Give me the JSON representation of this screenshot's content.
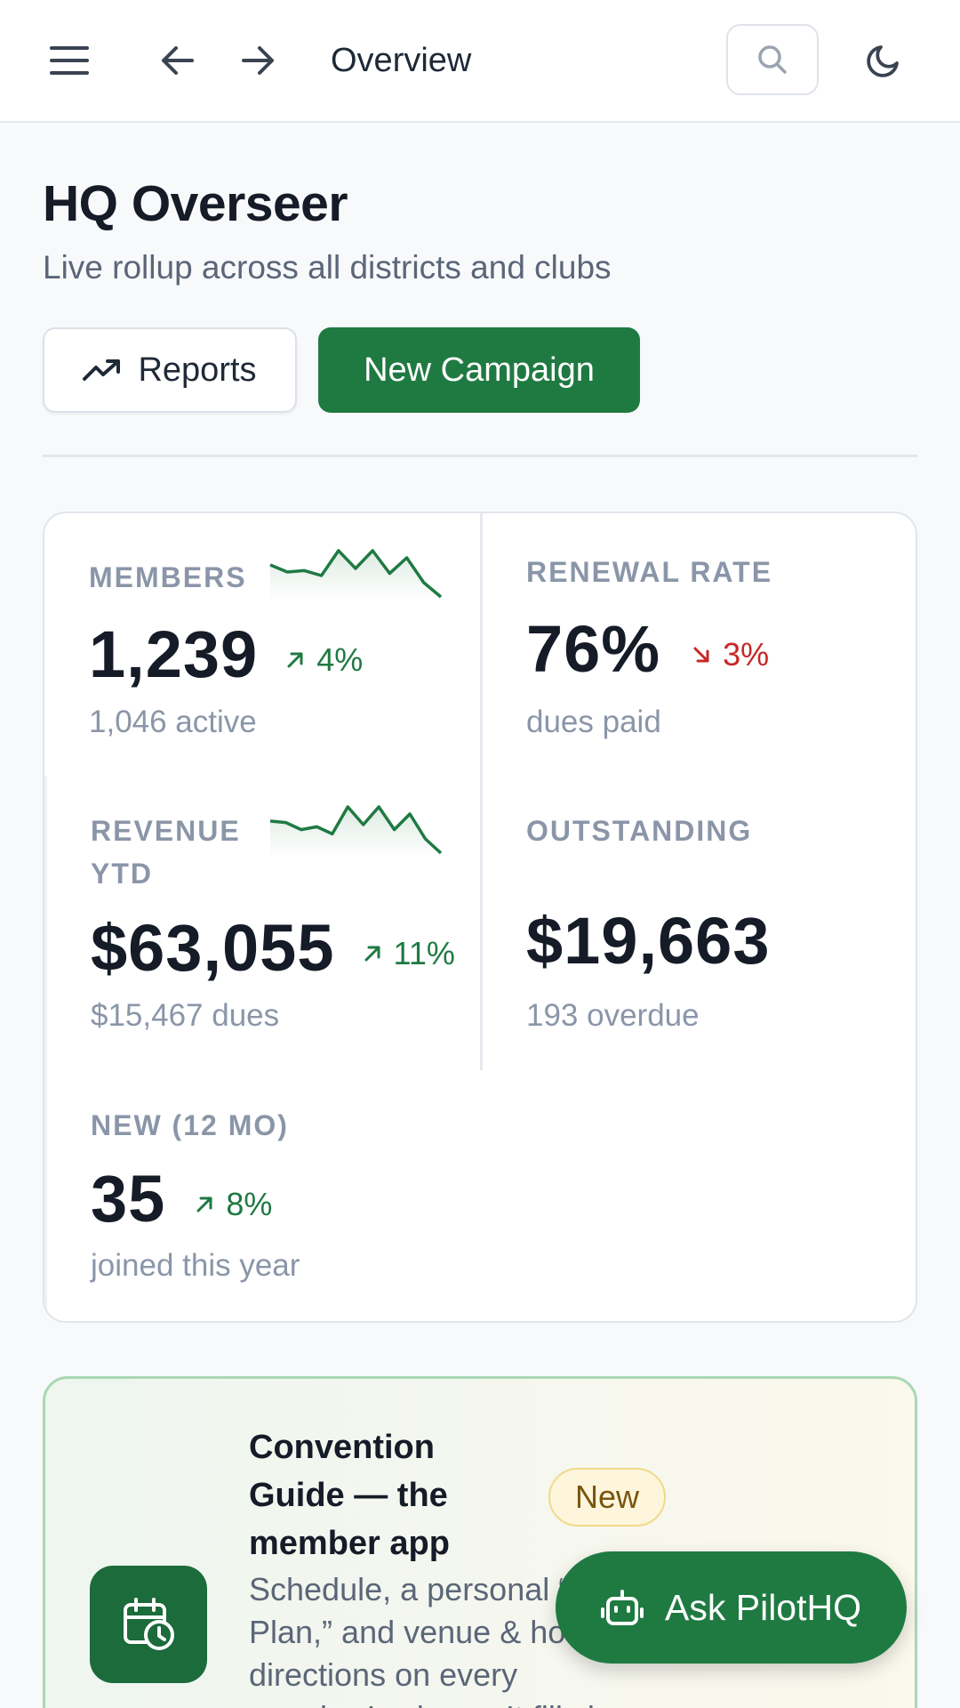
{
  "topbar": {
    "title": "Overview",
    "icons": [
      "menu-icon",
      "arrow-left-icon",
      "arrow-right-icon",
      "search-icon",
      "moon-icon"
    ]
  },
  "header": {
    "title": "HQ Overseer",
    "subtitle": "Live rollup across all districts and clubs",
    "reports_label": "Reports",
    "campaign_label": "New Campaign"
  },
  "stats": {
    "members": {
      "label": "MEMBERS",
      "value": "1,239",
      "delta": "4%",
      "delta_direction": "up",
      "sub": "1,046 active",
      "sparkline": [
        5,
        4,
        4.2,
        3.5,
        7,
        4.5,
        7,
        3.8,
        6,
        2.5,
        0.5
      ]
    },
    "renewal": {
      "label": "RENEWAL RATE",
      "value": "76%",
      "delta": "3%",
      "delta_direction": "down",
      "sub": "dues paid"
    },
    "revenue": {
      "label_line1": "REVENUE",
      "label_line2": "YTD",
      "value": "$63,055",
      "delta": "11%",
      "delta_direction": "up",
      "sub": "$15,467 dues",
      "sparkline": [
        5,
        4.8,
        3.8,
        4.2,
        3.2,
        7,
        4.5,
        7,
        3.8,
        6,
        2.5,
        0.5
      ]
    },
    "outstanding": {
      "label": "OUTSTANDING",
      "value": "$19,663",
      "sub": "193 overdue"
    },
    "new_members": {
      "label": "NEW (12 MO)",
      "value": "35",
      "delta": "8%",
      "delta_direction": "up",
      "sub": "joined this year"
    }
  },
  "promo": {
    "title": "Convention Guide — the member app",
    "badge": "New",
    "description": "Schedule, a personal “My Plan,” and venue & hotel directions on every member’s phone. It fills in",
    "icon": "calendar-clock-icon"
  },
  "fab": {
    "label": "Ask PilotHQ",
    "icon": "robot-icon"
  },
  "colors": {
    "accent": "#1f7a42",
    "danger": "#c62828",
    "muted": "#8a96a8"
  }
}
